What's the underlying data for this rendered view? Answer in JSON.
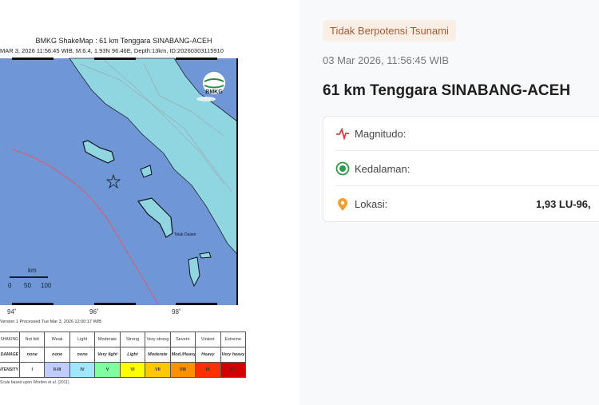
{
  "shakemap": {
    "title": "BMKG ShakeMap : 61 km Tenggara SINABANG-ACEH",
    "subtitle": "MAR 3, 2026 11:56:45 WIB, M:6.4, 1.93N 96.46E, Depth:13km, ID:20260303115910",
    "logo_text": "BMKG",
    "scale_unit": "km",
    "scale_ticks": [
      "0",
      "50",
      "100"
    ],
    "place_label": "Teluk Dalam",
    "lon_labels": [
      "94˚",
      "96˚",
      "98˚"
    ],
    "processed": "Version 1 Processed Tue Mar 3, 2026 12:00:17 WIB",
    "credit": "Scale based upon Worden et al. (2011)",
    "legend": {
      "row_headers": [
        "PERCEIVED SHAKING",
        "POTENTIAL DAMAGE",
        "INTENSITY"
      ],
      "shaking": [
        "Not felt",
        "Weak",
        "Light",
        "Moderate",
        "Strong",
        "Very strong",
        "Severe",
        "Violent",
        "Extreme"
      ],
      "damage": [
        "none",
        "none",
        "none",
        "Very light",
        "Light",
        "Moderate",
        "Mod./Heavy",
        "Heavy",
        "Very heavy"
      ],
      "intensity": [
        "I",
        "II-III",
        "IV",
        "V",
        "VI",
        "VII",
        "VIII",
        "IX",
        "X+"
      ],
      "colors": [
        "#ffffff",
        "#bfccff",
        "#a0e6ff",
        "#80ffa0",
        "#ffff00",
        "#ffc800",
        "#ff9100",
        "#ff3000",
        "#d00000"
      ]
    }
  },
  "info": {
    "tsunami_badge": "Tidak Berpotensi Tsunami",
    "datetime": "03 Mar 2026, 11:56:45 WIB",
    "location_title": "61 km Tenggara SINABANG-ACEH",
    "rows": [
      {
        "label": "Magnitudo:",
        "icon": "pulse-icon",
        "value": ""
      },
      {
        "label": "Kedalaman:",
        "icon": "target-icon",
        "value": ""
      },
      {
        "label": "Lokasi:",
        "icon": "map-pin-icon",
        "value": "1,93 LU-96,"
      }
    ]
  }
}
